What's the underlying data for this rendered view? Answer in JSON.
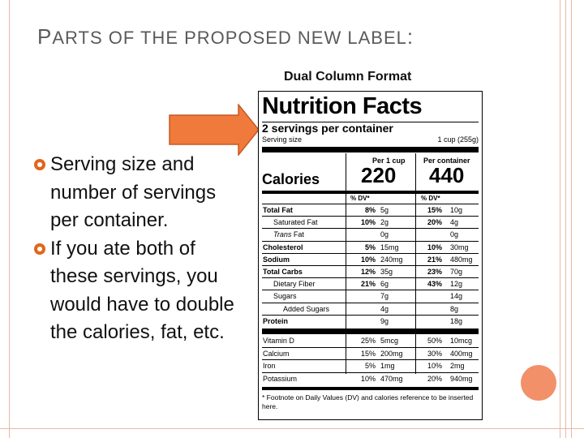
{
  "slide": {
    "title_first_letter": "P",
    "title_rest": "ARTS OF THE PROPOSED NEW LABEL",
    "title_colon": ":",
    "bullets": [
      "Serving size and number of servings per container.",
      "If you ate both of these servings, you would have to double the calories, fat, etc."
    ],
    "accent_color": "#e2651a",
    "arrow_color": "#f07a3c"
  },
  "label": {
    "format_title": "Dual Column Format",
    "title": "Nutrition Facts",
    "servings_per_container": "2 servings per container",
    "serving_size_label": "Serving size",
    "serving_size_value": "1 cup (255g)",
    "col_per_cup": "Per 1 cup",
    "col_per_container": "Per container",
    "calories_label": "Calories",
    "calories_per_cup": "220",
    "calories_per_container": "440",
    "dv_header": "% DV*",
    "nutrients": [
      {
        "name": "Total Fat",
        "dv1": "8%",
        "amt1": "5g",
        "dv2": "15%",
        "amt2": "10g"
      },
      {
        "name": "Saturated Fat",
        "dv1": "10%",
        "amt1": "2g",
        "dv2": "20%",
        "amt2": "4g"
      },
      {
        "name_italic": "Trans",
        "name_rest": " Fat",
        "dv1": "",
        "amt1": "0g",
        "dv2": "",
        "amt2": "0g"
      },
      {
        "name": "Cholesterol",
        "dv1": "5%",
        "amt1": "15mg",
        "dv2": "10%",
        "amt2": "30mg"
      },
      {
        "name": "Sodium",
        "dv1": "10%",
        "amt1": "240mg",
        "dv2": "21%",
        "amt2": "480mg"
      },
      {
        "name": "Total Carbs",
        "dv1": "12%",
        "amt1": "35g",
        "dv2": "23%",
        "amt2": "70g"
      },
      {
        "name": "Dietary Fiber",
        "dv1": "21%",
        "amt1": "6g",
        "dv2": "43%",
        "amt2": "12g"
      },
      {
        "name": "Sugars",
        "dv1": "",
        "amt1": "7g",
        "dv2": "",
        "amt2": "14g"
      },
      {
        "name": "Added Sugars",
        "dv1": "",
        "amt1": "4g",
        "dv2": "",
        "amt2": "8g"
      },
      {
        "name": "Protein",
        "dv1": "",
        "amt1": "9g",
        "dv2": "",
        "amt2": "18g"
      }
    ],
    "vitamins": [
      {
        "name": "Vitamin D",
        "dv1": "25%",
        "amt1": "5mcg",
        "dv2": "50%",
        "amt2": "10mcg"
      },
      {
        "name": "Calcium",
        "dv1": "15%",
        "amt1": "200mg",
        "dv2": "30%",
        "amt2": "400mg"
      },
      {
        "name": "Iron",
        "dv1": "5%",
        "amt1": "1mg",
        "dv2": "10%",
        "amt2": "2mg"
      },
      {
        "name": "Potassium",
        "dv1": "10%",
        "amt1": "470mg",
        "dv2": "20%",
        "amt2": "940mg"
      }
    ],
    "footnote": "* Footnote on Daily Values (DV) and calories reference to be inserted here."
  }
}
